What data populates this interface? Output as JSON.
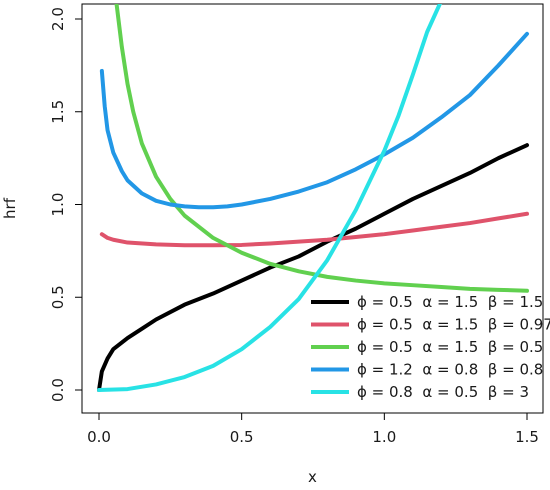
{
  "chart_data": {
    "type": "line",
    "title": "",
    "xlabel": "x",
    "ylabel": "hrf",
    "xlim": [
      0.0,
      1.5
    ],
    "ylim": [
      0.0,
      2.0
    ],
    "xticks": [
      "0.0",
      "0.5",
      "1.0",
      "1.5"
    ],
    "yticks": [
      "0.0",
      "0.5",
      "1.0",
      "1.5",
      "2.0"
    ],
    "grid": false,
    "legend_position": "bottom-right",
    "series": [
      {
        "name": "ϕ = 0.5  α = 1.5  β = 1.5",
        "color": "#000000",
        "x": [
          0.0,
          0.01,
          0.03,
          0.05,
          0.1,
          0.15,
          0.2,
          0.3,
          0.4,
          0.5,
          0.6,
          0.7,
          0.8,
          0.9,
          1.0,
          1.1,
          1.2,
          1.3,
          1.4,
          1.5
        ],
        "y": [
          0.0,
          0.1,
          0.17,
          0.22,
          0.28,
          0.33,
          0.38,
          0.46,
          0.52,
          0.59,
          0.66,
          0.72,
          0.8,
          0.87,
          0.95,
          1.03,
          1.1,
          1.17,
          1.25,
          1.32
        ]
      },
      {
        "name": "ϕ = 0.5  α = 1.5  β = 0.97",
        "color": "#DF536B",
        "x": [
          0.01,
          0.03,
          0.05,
          0.1,
          0.2,
          0.3,
          0.4,
          0.5,
          0.6,
          0.7,
          0.8,
          0.9,
          1.0,
          1.1,
          1.2,
          1.3,
          1.4,
          1.5
        ],
        "y": [
          0.84,
          0.82,
          0.81,
          0.795,
          0.785,
          0.78,
          0.78,
          0.782,
          0.79,
          0.8,
          0.81,
          0.825,
          0.84,
          0.86,
          0.88,
          0.9,
          0.925,
          0.95
        ]
      },
      {
        "name": "ϕ = 0.5  α = 1.5  β = 0.5",
        "color": "#61D04F",
        "x": [
          0.06,
          0.08,
          0.1,
          0.12,
          0.15,
          0.2,
          0.25,
          0.3,
          0.4,
          0.5,
          0.6,
          0.7,
          0.8,
          0.9,
          1.0,
          1.1,
          1.2,
          1.3,
          1.4,
          1.5
        ],
        "y": [
          2.1,
          1.85,
          1.65,
          1.5,
          1.33,
          1.15,
          1.03,
          0.94,
          0.82,
          0.74,
          0.68,
          0.64,
          0.61,
          0.59,
          0.575,
          0.565,
          0.555,
          0.545,
          0.54,
          0.535
        ]
      },
      {
        "name": "ϕ = 1.2  α = 0.8  β = 0.8",
        "color": "#2297E6",
        "x": [
          0.01,
          0.02,
          0.03,
          0.05,
          0.08,
          0.1,
          0.15,
          0.2,
          0.25,
          0.3,
          0.35,
          0.4,
          0.45,
          0.5,
          0.6,
          0.7,
          0.8,
          0.9,
          1.0,
          1.1,
          1.2,
          1.3,
          1.4,
          1.5
        ],
        "y": [
          1.72,
          1.53,
          1.4,
          1.28,
          1.18,
          1.13,
          1.06,
          1.02,
          1.0,
          0.99,
          0.985,
          0.985,
          0.99,
          1.0,
          1.03,
          1.07,
          1.12,
          1.19,
          1.27,
          1.36,
          1.47,
          1.59,
          1.75,
          1.92
        ]
      },
      {
        "name": "ϕ = 0.8  α = 0.5  β = 3",
        "color": "#28E2E5",
        "x": [
          0.0,
          0.1,
          0.2,
          0.3,
          0.4,
          0.5,
          0.6,
          0.7,
          0.8,
          0.9,
          1.0,
          1.05,
          1.1,
          1.15,
          1.2
        ],
        "y": [
          0.0,
          0.005,
          0.03,
          0.07,
          0.13,
          0.22,
          0.34,
          0.49,
          0.7,
          0.97,
          1.29,
          1.48,
          1.7,
          1.93,
          2.1
        ]
      }
    ]
  }
}
